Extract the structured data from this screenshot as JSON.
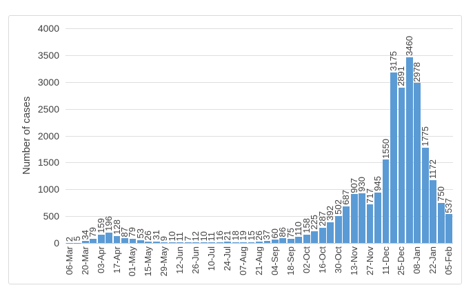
{
  "chart_data": {
    "type": "bar",
    "title": "",
    "xlabel": "",
    "ylabel": "Number of cases",
    "ylim": [
      0,
      4000
    ],
    "y_ticks": [
      0,
      500,
      1000,
      1500,
      2000,
      2500,
      3000,
      3500,
      4000
    ],
    "grid": "horizontal",
    "legend": "none",
    "bar_color": "#5b9bd5",
    "gridline_color": "#dedede",
    "text_color": "#404040",
    "frame_border_color": "#d9d9d9",
    "data_labels_visible": true,
    "data_label_rotation_deg": 90,
    "x_tick_rotation_deg": 90,
    "x_tick_every": 2,
    "values": [
      2,
      5,
      34,
      79,
      159,
      196,
      128,
      87,
      79,
      53,
      26,
      31,
      9,
      10,
      11,
      7,
      12,
      10,
      11,
      16,
      21,
      18,
      19,
      15,
      26,
      37,
      60,
      86,
      75,
      110,
      158,
      225,
      287,
      392,
      502,
      687,
      907,
      930,
      717,
      945,
      1550,
      3175,
      2891,
      3460,
      2978,
      1775,
      1172,
      750,
      537
    ],
    "x_tick_labels": [
      "06-Mar",
      "20-Mar",
      "03-Apr",
      "17-Apr",
      "01-May",
      "15-May",
      "29-May",
      "12-Jun",
      "26-Jun",
      "10-Jul",
      "24-Jul",
      "07-Aug",
      "21-Aug",
      "04-Sep",
      "18-Sep",
      "02-Oct",
      "16-Oct",
      "30-Oct",
      "13-Nov",
      "27-Nov",
      "11-Dec",
      "25-Dec",
      "08-Jan",
      "22-Jan",
      "05-Feb"
    ]
  }
}
